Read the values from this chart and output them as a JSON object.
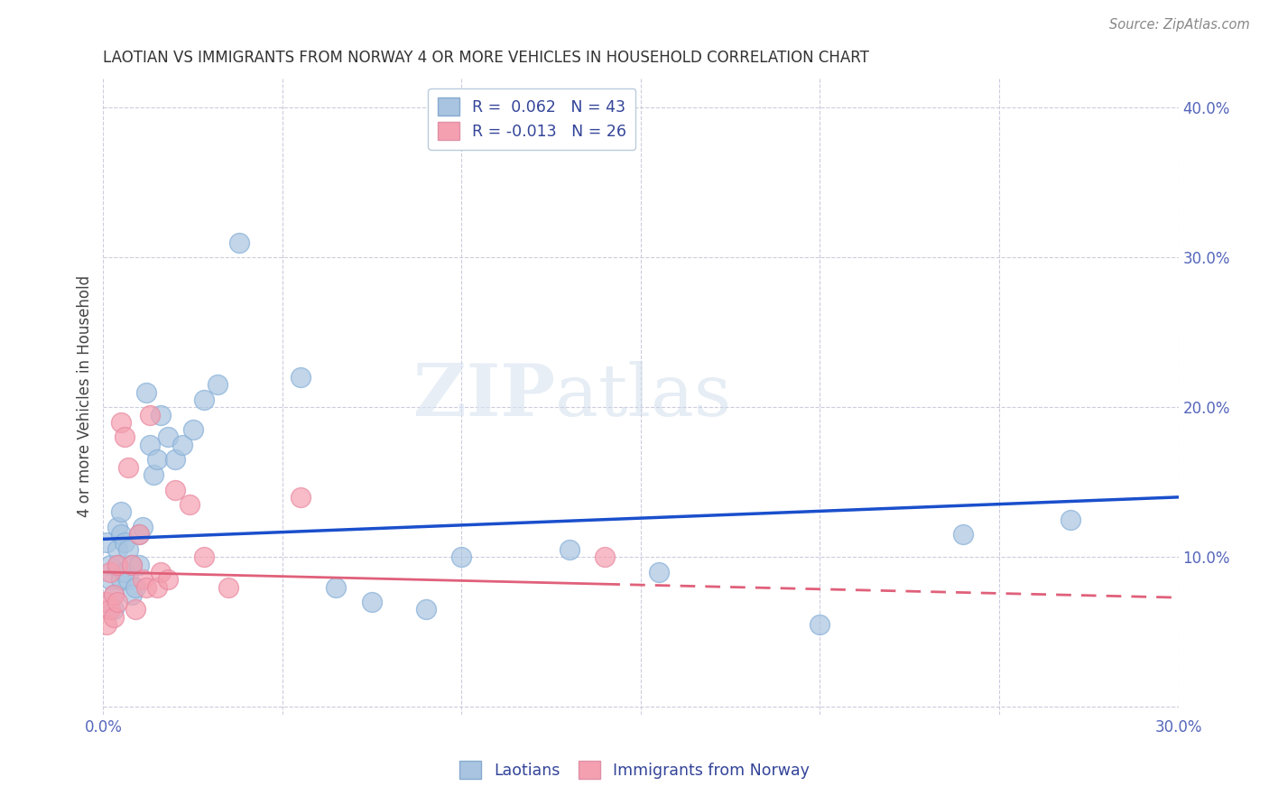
{
  "title": "LAOTIAN VS IMMIGRANTS FROM NORWAY 4 OR MORE VEHICLES IN HOUSEHOLD CORRELATION CHART",
  "source": "Source: ZipAtlas.com",
  "ylabel": "4 or more Vehicles in Household",
  "xlim": [
    0.0,
    0.3
  ],
  "ylim": [
    -0.005,
    0.42
  ],
  "xticks": [
    0.0,
    0.05,
    0.1,
    0.15,
    0.2,
    0.25,
    0.3
  ],
  "yticks": [
    0.0,
    0.1,
    0.2,
    0.3,
    0.4
  ],
  "xtick_labels": [
    "0.0%",
    "",
    "",
    "",
    "",
    "",
    "30.0%"
  ],
  "ytick_labels": [
    "",
    "10.0%",
    "20.0%",
    "30.0%",
    "40.0%"
  ],
  "r_laotian": 0.062,
  "n_laotian": 43,
  "r_norway": -0.013,
  "n_norway": 26,
  "laotian_color": "#a8c4e0",
  "norway_color": "#f4a0b0",
  "trend_blue": "#1a4fcc",
  "trend_pink": "#e0607a",
  "watermark_zip": "ZIP",
  "watermark_atlas": "atlas",
  "laotian_x": [
    0.001,
    0.002,
    0.002,
    0.003,
    0.003,
    0.004,
    0.004,
    0.004,
    0.005,
    0.005,
    0.005,
    0.006,
    0.006,
    0.007,
    0.007,
    0.008,
    0.008,
    0.009,
    0.01,
    0.01,
    0.011,
    0.012,
    0.013,
    0.014,
    0.015,
    0.016,
    0.018,
    0.02,
    0.022,
    0.025,
    0.028,
    0.032,
    0.038,
    0.055,
    0.065,
    0.075,
    0.09,
    0.1,
    0.13,
    0.155,
    0.2,
    0.24,
    0.27
  ],
  "laotian_y": [
    0.11,
    0.095,
    0.085,
    0.075,
    0.065,
    0.12,
    0.105,
    0.095,
    0.13,
    0.115,
    0.085,
    0.11,
    0.09,
    0.105,
    0.085,
    0.095,
    0.075,
    0.08,
    0.115,
    0.095,
    0.12,
    0.21,
    0.175,
    0.155,
    0.165,
    0.195,
    0.18,
    0.165,
    0.175,
    0.185,
    0.205,
    0.215,
    0.31,
    0.22,
    0.08,
    0.07,
    0.065,
    0.1,
    0.105,
    0.09,
    0.055,
    0.115,
    0.125
  ],
  "norway_x": [
    0.001,
    0.001,
    0.002,
    0.002,
    0.003,
    0.003,
    0.004,
    0.004,
    0.005,
    0.006,
    0.007,
    0.008,
    0.009,
    0.01,
    0.011,
    0.012,
    0.013,
    0.015,
    0.016,
    0.018,
    0.02,
    0.024,
    0.028,
    0.035,
    0.055,
    0.14
  ],
  "norway_y": [
    0.07,
    0.055,
    0.09,
    0.065,
    0.06,
    0.075,
    0.095,
    0.07,
    0.19,
    0.18,
    0.16,
    0.095,
    0.065,
    0.115,
    0.085,
    0.08,
    0.195,
    0.08,
    0.09,
    0.085,
    0.145,
    0.135,
    0.1,
    0.08,
    0.14,
    0.1
  ],
  "trend_blue_x0": 0.0,
  "trend_blue_y0": 0.112,
  "trend_blue_x1": 0.3,
  "trend_blue_y1": 0.14,
  "trend_pink_x0": 0.0,
  "trend_pink_y0": 0.09,
  "trend_pink_x1": 0.14,
  "trend_pink_y1": 0.082,
  "trend_pink_dash_x0": 0.14,
  "trend_pink_dash_y0": 0.082,
  "trend_pink_dash_x1": 0.3,
  "trend_pink_dash_y1": 0.073
}
